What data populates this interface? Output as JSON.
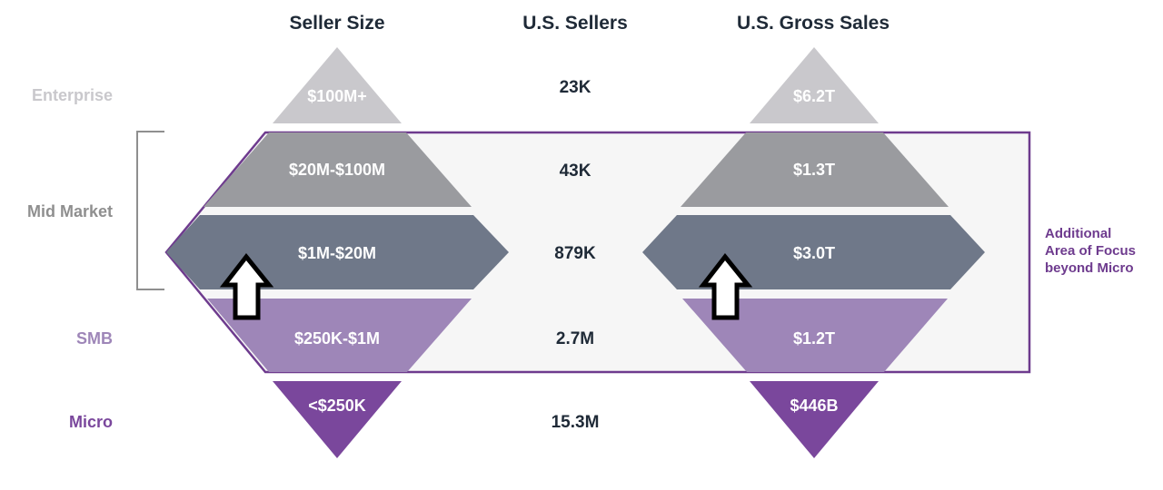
{
  "colors": {
    "enterprise": "#c9c8cc",
    "mid_upper": "#9a9b9f",
    "mid_lower": "#6f7889",
    "smb": "#9e86b8",
    "micro": "#7a479c",
    "focus_border": "#6e3b8e",
    "focus_fill": "#f6f6f6",
    "bracket": "#8f8f8f",
    "text_dark": "#1f2a37",
    "label_enterprise": "#c9c8cc",
    "label_mid": "#8f8f8f",
    "label_smb": "#9e86b8",
    "label_micro": "#7a479c"
  },
  "headers": {
    "seller_size": "Seller Size",
    "us_sellers": "U.S. Sellers",
    "us_gross_sales": "U.S. Gross Sales"
  },
  "row_labels": {
    "enterprise": "Enterprise",
    "mid_market": "Mid Market",
    "smb": "SMB",
    "micro": "Micro"
  },
  "tiers": [
    {
      "id": "enterprise",
      "size": "$100M+",
      "sellers": "23K",
      "gross_sales": "$6.2T"
    },
    {
      "id": "mid-upper",
      "size": "$20M-$100M",
      "sellers": "43K",
      "gross_sales": "$1.3T"
    },
    {
      "id": "mid-lower",
      "size": "$1M-$20M",
      "sellers": "879K",
      "gross_sales": "$3.0T"
    },
    {
      "id": "smb",
      "size": "$250K-$1M",
      "sellers": "2.7M",
      "gross_sales": "$1.2T"
    },
    {
      "id": "micro",
      "size": "<$250K",
      "sellers": "15.3M",
      "gross_sales": "$446B"
    }
  ],
  "focus_note": {
    "line1": "Additional",
    "line2": "Area of Focus",
    "line3": "beyond Micro"
  },
  "icons": {
    "bracket": "mid-market-bracket",
    "arrow": "up-arrow-icon"
  }
}
